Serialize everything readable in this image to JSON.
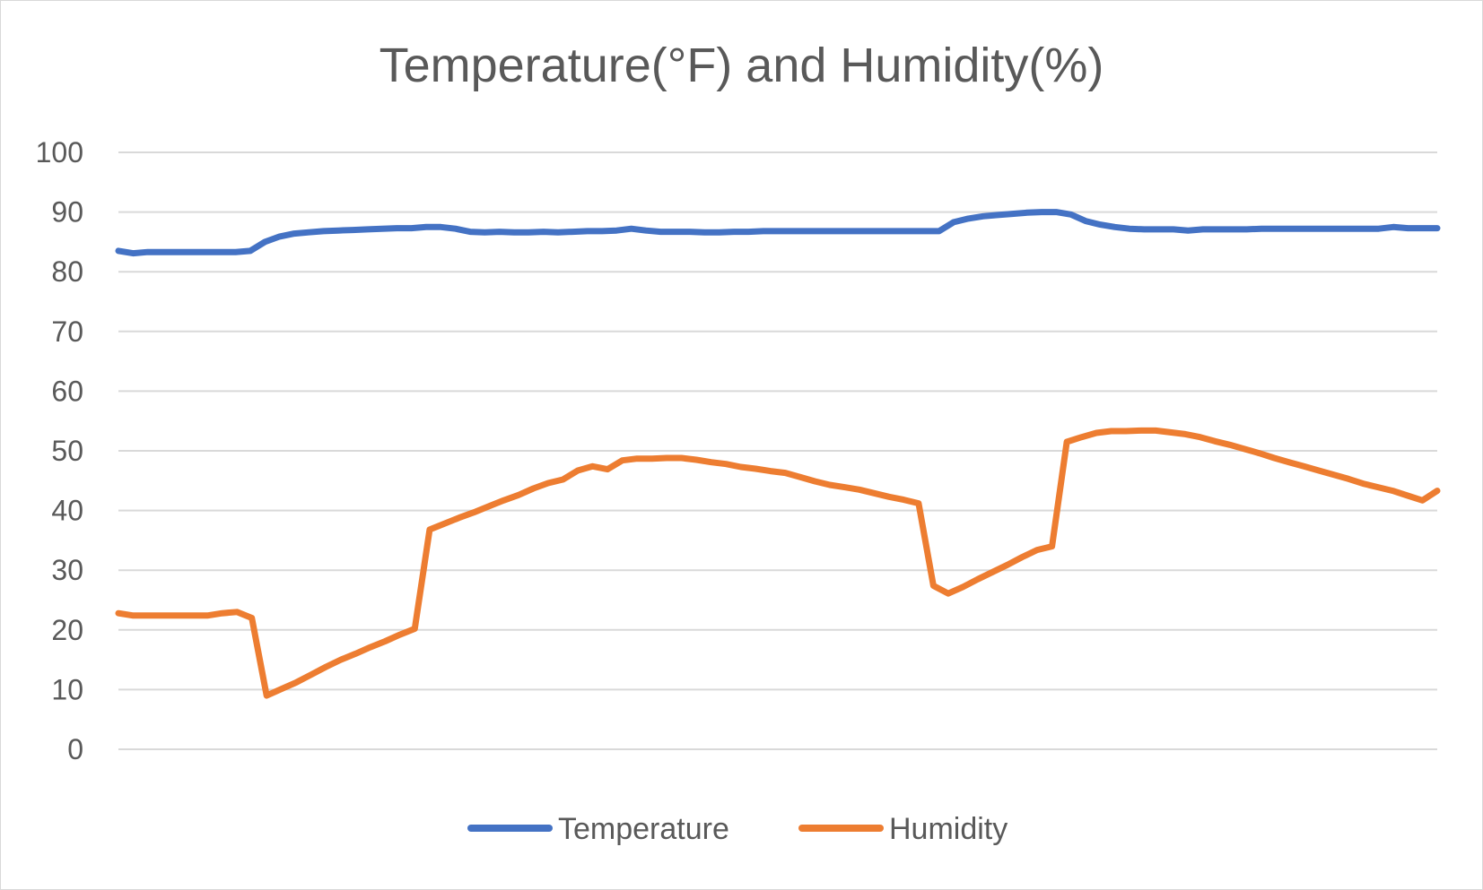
{
  "chart_data": {
    "type": "line",
    "title": "Temperature(°F) and Humidity(%)",
    "xlabel": "",
    "ylabel": "",
    "ylim": [
      0,
      100
    ],
    "yticks": [
      0,
      10,
      20,
      30,
      40,
      50,
      60,
      70,
      80,
      90,
      100
    ],
    "grid": true,
    "legend_position": "bottom",
    "series": [
      {
        "name": "Temperature",
        "color": "#4472C4",
        "values": [
          83.5,
          83.1,
          83.3,
          83.3,
          83.3,
          83.3,
          83.3,
          83.3,
          83.3,
          83.5,
          85.0,
          85.9,
          86.4,
          86.6,
          86.8,
          86.9,
          87.0,
          87.1,
          87.2,
          87.3,
          87.3,
          87.5,
          87.5,
          87.2,
          86.7,
          86.6,
          86.7,
          86.6,
          86.6,
          86.7,
          86.6,
          86.7,
          86.8,
          86.8,
          86.9,
          87.2,
          86.9,
          86.7,
          86.7,
          86.7,
          86.6,
          86.6,
          86.7,
          86.7,
          86.8,
          86.8,
          86.8,
          86.8,
          86.8,
          86.8,
          86.8,
          86.8,
          86.8,
          86.8,
          86.8,
          86.8,
          86.8,
          88.3,
          88.9,
          89.3,
          89.5,
          89.7,
          89.9,
          90.0,
          90.0,
          89.6,
          88.5,
          87.9,
          87.5,
          87.2,
          87.1,
          87.1,
          87.1,
          86.9,
          87.1,
          87.1,
          87.1,
          87.1,
          87.2,
          87.2,
          87.2,
          87.2,
          87.2,
          87.2,
          87.2,
          87.2,
          87.2,
          87.5,
          87.3,
          87.3,
          87.3
        ]
      },
      {
        "name": "Humidity",
        "color": "#ED7D31",
        "values": [
          22.8,
          22.4,
          22.4,
          22.4,
          22.4,
          22.4,
          22.4,
          22.8,
          23.0,
          22.0,
          9.0,
          10.1,
          11.2,
          12.5,
          13.8,
          15.0,
          16.0,
          17.1,
          18.1,
          19.2,
          20.2,
          36.8,
          37.8,
          38.8,
          39.7,
          40.7,
          41.7,
          42.6,
          43.7,
          44.6,
          45.2,
          46.7,
          47.4,
          46.9,
          48.4,
          48.7,
          48.7,
          48.8,
          48.8,
          48.5,
          48.1,
          47.8,
          47.3,
          47.0,
          46.6,
          46.3,
          45.6,
          44.9,
          44.3,
          43.9,
          43.5,
          42.9,
          42.3,
          41.8,
          41.2,
          27.4,
          26.1,
          27.2,
          28.5,
          29.7,
          30.9,
          32.2,
          33.4,
          34.0,
          51.5,
          52.3,
          53.0,
          53.3,
          53.3,
          53.4,
          53.4,
          53.1,
          52.8,
          52.3,
          51.6,
          51.0,
          50.3,
          49.6,
          48.8,
          48.1,
          47.4,
          46.7,
          46.0,
          45.3,
          44.5,
          43.9,
          43.3,
          42.5,
          41.7,
          43.3
        ]
      }
    ]
  }
}
